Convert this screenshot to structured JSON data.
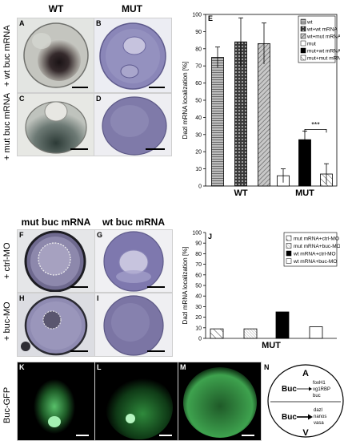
{
  "headers": {
    "wt": "WT",
    "mut": "MUT",
    "mut_buc_mrna": "mut buc mRNA",
    "wt_buc_mrna": "wt buc mRNA"
  },
  "row_labels": {
    "wt_buc_mrna": "+ wt buc mRNA",
    "mut_buc_mrna": "+ mut buc mRNA",
    "ctrl_mo": "+ ctrl-MO",
    "buc_mo": "+ buc-MO",
    "buc_gfp": "Buc-GFP"
  },
  "panels": {
    "A": "A",
    "B": "B",
    "C": "C",
    "D": "D",
    "E": "E",
    "F": "F",
    "G": "G",
    "H": "H",
    "I": "I",
    "J": "J",
    "K": "K",
    "L": "L",
    "M": "M",
    "N": "N"
  },
  "schematic": {
    "top_pole": "A",
    "bottom_pole": "V",
    "buc_top": "Buc",
    "buc_bottom": "Buc",
    "top_targets": [
      "foxH1",
      "vg1RBP",
      "buc"
    ],
    "bottom_targets": [
      "dazl",
      "nanos",
      "vasa"
    ]
  },
  "chart_data": [
    {
      "panel": "E",
      "type": "bar",
      "ylabel": "Dazl mRNA localization [%]",
      "ylim": [
        0,
        100
      ],
      "yticks": [
        0,
        10,
        20,
        30,
        40,
        50,
        60,
        70,
        80,
        90,
        100
      ],
      "groups": [
        "WT",
        "MUT"
      ],
      "series": [
        {
          "name": "wt",
          "group": "WT",
          "value": 75,
          "error": 6
        },
        {
          "name": "wt+wt mRNA",
          "group": "WT",
          "value": 84,
          "error": 14
        },
        {
          "name": "wt+mut mRNA",
          "group": "WT",
          "value": 83,
          "error": 12
        },
        {
          "name": "mut",
          "group": "MUT",
          "value": 6,
          "error": 4
        },
        {
          "name": "mut+wt mRNA",
          "group": "MUT",
          "value": 27,
          "error": 5
        },
        {
          "name": "mut+mut mRNA",
          "group": "MUT",
          "value": 7,
          "error": 6
        }
      ],
      "annotation": "***",
      "legend": "top-right"
    },
    {
      "panel": "J",
      "type": "bar",
      "ylabel": "Dazl mRNA localization [%]",
      "ylim": [
        0,
        100
      ],
      "yticks": [
        0,
        10,
        20,
        30,
        40,
        50,
        60,
        70,
        80,
        90,
        100
      ],
      "groups": [
        "MUT"
      ],
      "series": [
        {
          "name": "mut mRNA+ctrl-MO",
          "group": "MUT",
          "value": 9
        },
        {
          "name": "mut mRNA+buc-MO",
          "group": "MUT",
          "value": 9
        },
        {
          "name": "wt mRNA+ctrl-MO",
          "group": "MUT",
          "value": 25
        },
        {
          "name": "wt mRNA+buc-MO",
          "group": "MUT",
          "value": 11
        }
      ],
      "legend": "top-right"
    }
  ]
}
